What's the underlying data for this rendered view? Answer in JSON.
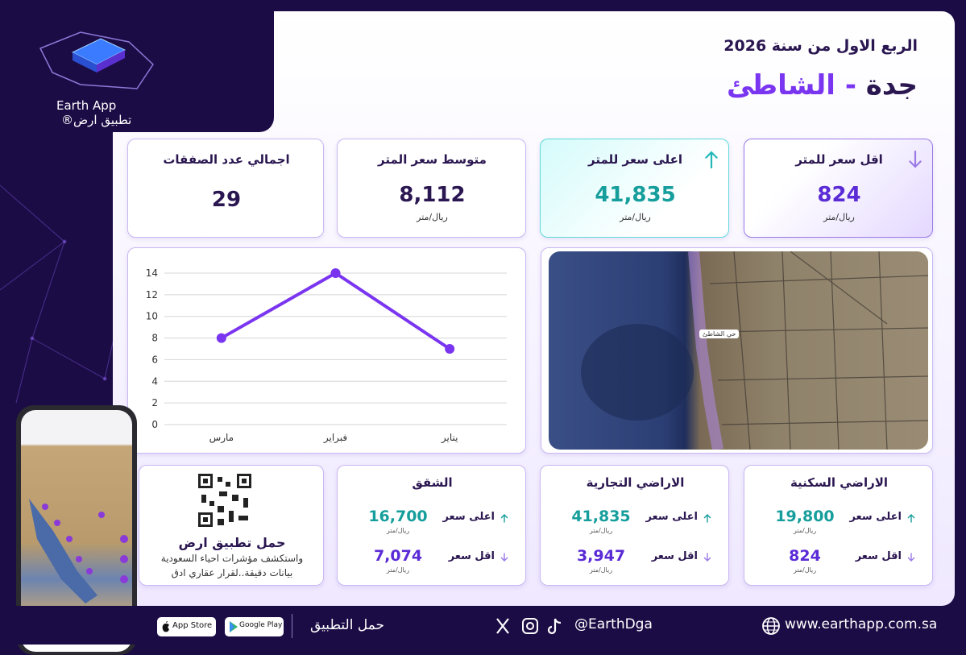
{
  "logo": {
    "name": "Earth App",
    "arabic_name": "تطبيق ارض®"
  },
  "header": {
    "period": "الربع الاول من سنة 2026",
    "city": "جدة",
    "separator": "-",
    "district": "الشاطئ"
  },
  "stats": [
    {
      "label": "اقل سعر للمتر",
      "value": "824",
      "unit": "ريال/متر"
    },
    {
      "label": "اعلى سعر للمتر",
      "value": "41,835",
      "unit": "ريال/متر"
    },
    {
      "label": "متوسط سعر المتر",
      "value": "8,112",
      "unit": "ريال/متر"
    },
    {
      "label": "اجمالي عدد الصفقات",
      "value": "29"
    }
  ],
  "chart_data": {
    "type": "line",
    "categories": [
      "مارس",
      "فبراير",
      "يناير"
    ],
    "values": [
      8,
      14,
      7
    ],
    "color": "#7a35f0",
    "ylim": [
      0,
      14
    ],
    "yticks": [
      0,
      2,
      4,
      6,
      8,
      10,
      12,
      14
    ],
    "grid": true
  },
  "map": {
    "label": "حي الشاطئ"
  },
  "segments": [
    {
      "title": "الاراضي السكنية",
      "high_label": "اعلى سعر",
      "high": "19,800",
      "high_unit": "ريال/متر",
      "low_label": "اقل سعر",
      "low": "824",
      "low_unit": "ريال/متر"
    },
    {
      "title": "الاراضي التجارية",
      "high_label": "اعلى سعر",
      "high": "41,835",
      "high_unit": "ريال/متر",
      "low_label": "اقل سعر",
      "low": "3,947",
      "low_unit": "ريال/متر"
    },
    {
      "title": "الشقق",
      "high_label": "اعلى سعر",
      "high": "16,700",
      "high_unit": "ريال/متر",
      "low_label": "اقل سعر",
      "low": "7,074",
      "low_unit": "ريال/متر"
    }
  ],
  "promo": {
    "title": "حمل تطبيق ارض",
    "line1": "واستكشف مؤشرات احياء السعودية",
    "line2": "بيانات دقيقة..لقرار عقاري ادق"
  },
  "footer": {
    "app_store": "App Store",
    "google_play": "Google Play",
    "download": "حمل التطبيق",
    "handle": "@EarthDga",
    "website": "www.earthapp.com.sa"
  }
}
